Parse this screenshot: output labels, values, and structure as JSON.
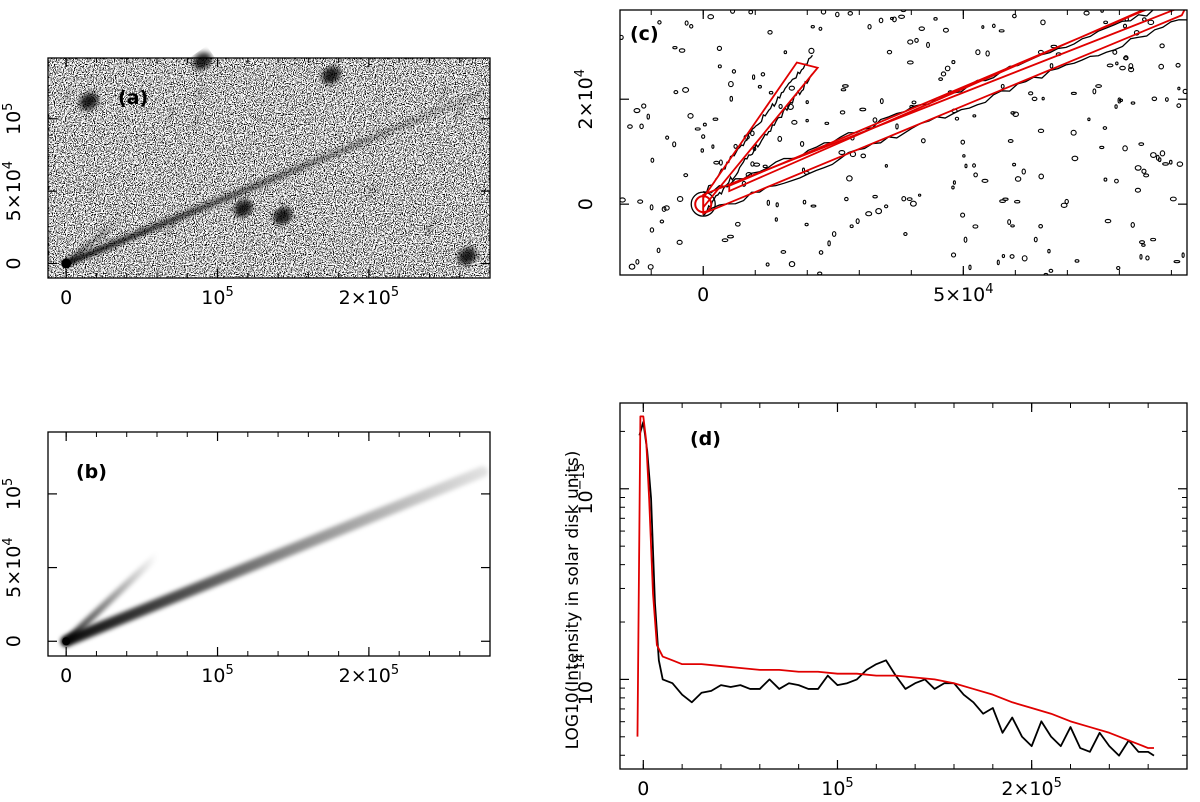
{
  "figure": {
    "colors": {
      "observed": "#000000",
      "model": "#e00000",
      "background": "#ffffff"
    }
  },
  "chart_data": [
    {
      "id": "a",
      "type": "heatmap",
      "panel_label": "(a)",
      "description_kind": "observed grayscale image",
      "xlim": [
        -12000,
        280000
      ],
      "ylim": [
        -10000,
        142000
      ],
      "x_ticks": [
        0,
        100000,
        200000
      ],
      "x_tick_labels": [
        {
          "base": "0"
        },
        {
          "base": "10",
          "sup": "5"
        },
        {
          "base": "2×10",
          "sup": "5"
        }
      ],
      "y_ticks": [
        0,
        50000,
        100000
      ],
      "y_tick_labels": [
        {
          "base": "0"
        },
        {
          "base": "5×10",
          "sup": "4"
        },
        {
          "base": "10",
          "sup": "5"
        }
      ],
      "tails": [
        {
          "name": "main tail",
          "from": [
            0,
            0
          ],
          "to": [
            275000,
            118000
          ]
        },
        {
          "name": "secondary tail",
          "from": [
            0,
            0
          ],
          "to": [
            38000,
            33000
          ]
        }
      ],
      "stars": [
        [
          15000,
          112000
        ],
        [
          90000,
          140000
        ],
        [
          175000,
          130000
        ],
        [
          117000,
          38000
        ],
        [
          143000,
          33000
        ],
        [
          265000,
          5000
        ]
      ]
    },
    {
      "id": "b",
      "type": "heatmap",
      "panel_label": "(b)",
      "description_kind": "model grayscale image",
      "xlim": [
        -12000,
        280000
      ],
      "ylim": [
        -10000,
        142000
      ],
      "x_ticks": [
        0,
        100000,
        200000
      ],
      "x_tick_labels": [
        {
          "base": "0"
        },
        {
          "base": "10",
          "sup": "5"
        },
        {
          "base": "2×10",
          "sup": "5"
        }
      ],
      "y_ticks": [
        0,
        50000,
        100000
      ],
      "y_tick_labels": [
        {
          "base": "0"
        },
        {
          "base": "5×10",
          "sup": "4"
        },
        {
          "base": "10",
          "sup": "5"
        }
      ],
      "tails": [
        {
          "name": "main tail",
          "from": [
            0,
            0
          ],
          "to": [
            275000,
            115000
          ]
        },
        {
          "name": "secondary tail",
          "from": [
            0,
            0
          ],
          "to": [
            60000,
            58000
          ]
        }
      ]
    },
    {
      "id": "c",
      "type": "line",
      "panel_label": "(c)",
      "description_kind": "contour overlay of observation (black) and model (red)",
      "xlim": [
        -16000,
        93000
      ],
      "ylim": [
        -13500,
        37000
      ],
      "x_ticks": [
        0,
        50000
      ],
      "x_tick_labels": [
        {
          "base": "0"
        },
        {
          "base": "5×10",
          "sup": "4"
        }
      ],
      "y_ticks": [
        0,
        20000
      ],
      "y_tick_labels": [
        {
          "base": "0"
        },
        {
          "base": "2×10",
          "sup": "4"
        }
      ],
      "model_contours": [
        {
          "name": "main tail outer",
          "x": [
            0,
            92000,
            93000,
            0
          ],
          "y": [
            -1800,
            36000,
            38000,
            1800
          ]
        },
        {
          "name": "main tail inner",
          "x": [
            5000,
            88000,
            85000,
            5000
          ],
          "y": [
            2500,
            38500,
            37000,
            3500
          ]
        },
        {
          "name": "secondary tail",
          "x": [
            0,
            22000,
            18000,
            0
          ],
          "y": [
            -600,
            26000,
            27000,
            1200
          ]
        }
      ],
      "observed_contours": [
        {
          "name": "main tail",
          "from": [
            0,
            0
          ],
          "to": [
            93000,
            37500
          ]
        },
        {
          "name": "secondary tail",
          "from": [
            0,
            0
          ],
          "to": [
            21000,
            26500
          ]
        }
      ]
    },
    {
      "id": "d",
      "type": "line",
      "panel_label": "(d)",
      "title": "",
      "xlabel": "",
      "ylabel": "LOG10(Intensity in solar disk units)",
      "y_scale": "log",
      "xlim": [
        -12000,
        280000
      ],
      "ylim_log10": [
        -14.47,
        -12.55
      ],
      "x_ticks": [
        0,
        100000,
        200000
      ],
      "x_tick_labels": [
        {
          "base": "0"
        },
        {
          "base": "10",
          "sup": "5"
        },
        {
          "base": "2×10",
          "sup": "5"
        }
      ],
      "y_ticks_log10": [
        -14,
        -13
      ],
      "y_tick_labels": [
        {
          "base": "10",
          "sup": "−14"
        },
        {
          "base": "10",
          "sup": "−13"
        }
      ],
      "series": [
        {
          "name": "observed",
          "color": "#000000",
          "x": [
            -2000,
            0,
            2000,
            4000,
            6000,
            8000,
            10000,
            15000,
            20000,
            25000,
            30000,
            35000,
            40000,
            45000,
            50000,
            55000,
            60000,
            65000,
            70000,
            75000,
            80000,
            85000,
            90000,
            95000,
            100000,
            105000,
            110000,
            115000,
            120000,
            125000,
            130000,
            135000,
            140000,
            145000,
            150000,
            155000,
            160000,
            165000,
            170000,
            175000,
            180000,
            185000,
            190000,
            195000,
            200000,
            205000,
            210000,
            215000,
            220000,
            225000,
            230000,
            235000,
            240000,
            245000,
            250000,
            255000,
            260000,
            263000
          ],
          "y_log10": [
            -12.72,
            -12.65,
            -12.8,
            -13.05,
            -13.6,
            -13.9,
            -14.0,
            -14.02,
            -14.08,
            -14.12,
            -14.07,
            -14.06,
            -14.03,
            -14.04,
            -14.03,
            -14.05,
            -14.05,
            -14.0,
            -14.05,
            -14.02,
            -14.03,
            -14.05,
            -14.05,
            -13.98,
            -14.03,
            -14.02,
            -14.0,
            -13.95,
            -13.92,
            -13.9,
            -13.98,
            -14.05,
            -14.02,
            -14.0,
            -14.05,
            -14.02,
            -14.02,
            -14.08,
            -14.12,
            -14.18,
            -14.15,
            -14.28,
            -14.2,
            -14.3,
            -14.35,
            -14.22,
            -14.3,
            -14.35,
            -14.25,
            -14.36,
            -14.38,
            -14.28,
            -14.35,
            -14.4,
            -14.32,
            -14.38,
            -14.38,
            -14.4
          ]
        },
        {
          "name": "model",
          "color": "#e00000",
          "x": [
            -3000,
            -1500,
            0,
            1500,
            3000,
            5000,
            7000,
            10000,
            15000,
            20000,
            30000,
            40000,
            50000,
            60000,
            70000,
            80000,
            90000,
            100000,
            110000,
            120000,
            130000,
            140000,
            150000,
            160000,
            170000,
            180000,
            190000,
            200000,
            210000,
            220000,
            230000,
            240000,
            250000,
            255000,
            260000,
            263000
          ],
          "y_log10": [
            -14.3,
            -12.62,
            -12.62,
            -12.75,
            -13.05,
            -13.55,
            -13.82,
            -13.88,
            -13.9,
            -13.92,
            -13.92,
            -13.93,
            -13.94,
            -13.95,
            -13.95,
            -13.96,
            -13.96,
            -13.97,
            -13.97,
            -13.98,
            -13.98,
            -13.99,
            -14.0,
            -14.02,
            -14.05,
            -14.08,
            -14.12,
            -14.15,
            -14.18,
            -14.22,
            -14.25,
            -14.28,
            -14.32,
            -14.34,
            -14.36,
            -14.36
          ]
        }
      ]
    }
  ]
}
